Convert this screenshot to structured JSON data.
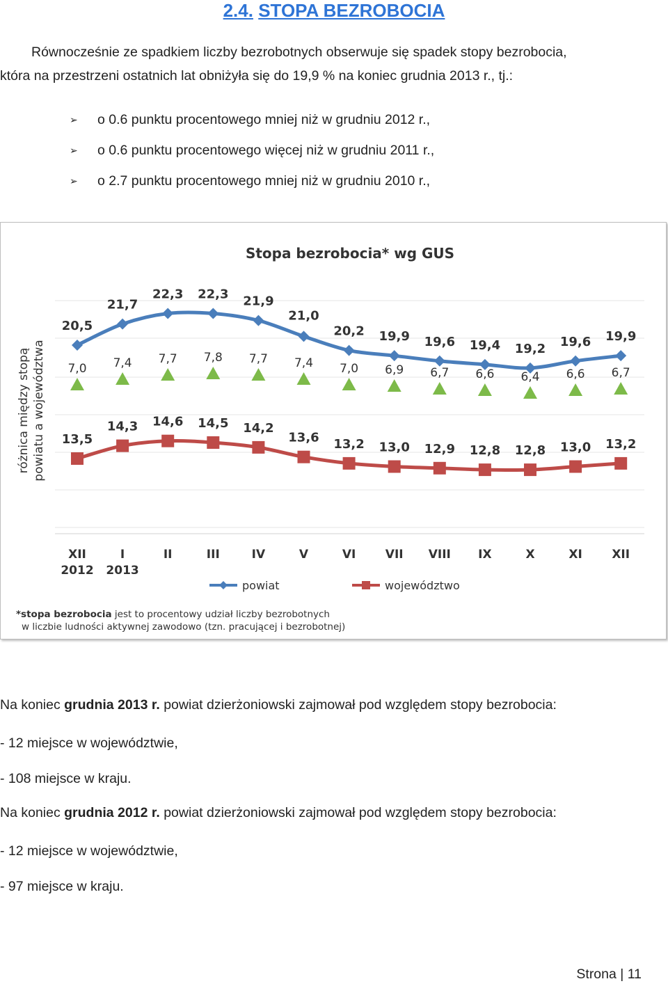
{
  "section": {
    "number": "2.4.",
    "title": "STOPA BEZROBOCIA"
  },
  "intro": {
    "line1": "Równocześnie ze spadkiem liczby bezrobotnych obserwuje się spadek stopy bezrobocia,",
    "line2": "która na przestrzeni ostatnich lat obniżyła się do 19,9 % na koniec grudnia 2013 r., tj.:"
  },
  "bullets": [
    "o 0.6 punktu procentowego mniej niż w grudniu 2012  r.,",
    "o 0.6 punktu procentowego więcej niż w grudniu 2011 r.,",
    "o 2.7 punktu procentowego mniej niż w grudniu 2010 r.,"
  ],
  "chart_data": {
    "type": "line",
    "title": "Stopa bezrobocia* wg GUS",
    "ylabel_line1": "różnica między stopą",
    "ylabel_line2": "powiatu a województwa",
    "categories": [
      [
        "XII",
        "2012"
      ],
      [
        "I",
        "2013"
      ],
      [
        "II"
      ],
      [
        "III"
      ],
      [
        "IV"
      ],
      [
        "V"
      ],
      [
        "VI"
      ],
      [
        "VII"
      ],
      [
        "VIII"
      ],
      [
        "IX"
      ],
      [
        "X"
      ],
      [
        "XI"
      ],
      [
        "XII"
      ]
    ],
    "series": [
      {
        "name": "powiat",
        "color": "#4a7ebb",
        "values": [
          20.5,
          21.7,
          22.3,
          22.3,
          21.9,
          21.0,
          20.2,
          19.9,
          19.6,
          19.4,
          19.2,
          19.6,
          19.9
        ],
        "labels": [
          "20,5",
          "21,7",
          "22,3",
          "22,3",
          "21,9",
          "21,0",
          "20,2",
          "19,9",
          "19,6",
          "19,4",
          "19,2",
          "19,6",
          "19,9"
        ]
      },
      {
        "name": "województwo",
        "color": "#be4b48",
        "values": [
          13.5,
          14.3,
          14.6,
          14.5,
          14.2,
          13.6,
          13.2,
          13.0,
          12.9,
          12.8,
          12.8,
          13.0,
          13.2
        ],
        "labels": [
          "13,5",
          "14,3",
          "14,6",
          "14,5",
          "14,2",
          "13,6",
          "13,2",
          "13,0",
          "12,9",
          "12,8",
          "12,8",
          "13,0",
          "13,2"
        ]
      },
      {
        "name": "różnica",
        "color": "#7dba49",
        "values": [
          7.0,
          7.4,
          7.7,
          7.8,
          7.7,
          7.4,
          7.0,
          6.9,
          6.7,
          6.6,
          6.4,
          6.6,
          6.7
        ],
        "labels": [
          "7,0",
          "7,4",
          "7,7",
          "7,8",
          "7,7",
          "7,4",
          "7,0",
          "6,9",
          "6,7",
          "6,6",
          "6,4",
          "6,6",
          "6,7"
        ]
      }
    ],
    "legend": [
      "powiat",
      "województwo"
    ],
    "footnote_bold": "*stopa bezrobocia",
    "footnote_rest": " jest to procentowy udział liczby bezrobotnych",
    "footnote_line2": "w liczbie ludności aktywnej zawodowo (tzn. pracującej i bezrobotnej)"
  },
  "rank2013": {
    "prefix": "Na koniec ",
    "bold": "grudnia 2013 r.",
    "suffix": " powiat dzierżoniowski zajmował pod względem stopy bezrobocia:",
    "item1": "- 12 miejsce w województwie,",
    "item2": "- 108 miejsce w kraju."
  },
  "rank2012": {
    "prefix": "Na koniec ",
    "bold": "grudnia 2012 r.",
    "suffix": " powiat dzierżoniowski zajmował pod względem stopy bezrobocia:",
    "item1": "- 12 miejsce w województwie,",
    "item2": "- 97 miejsce w kraju."
  },
  "footer": {
    "label": "Strona",
    "page": "11"
  }
}
